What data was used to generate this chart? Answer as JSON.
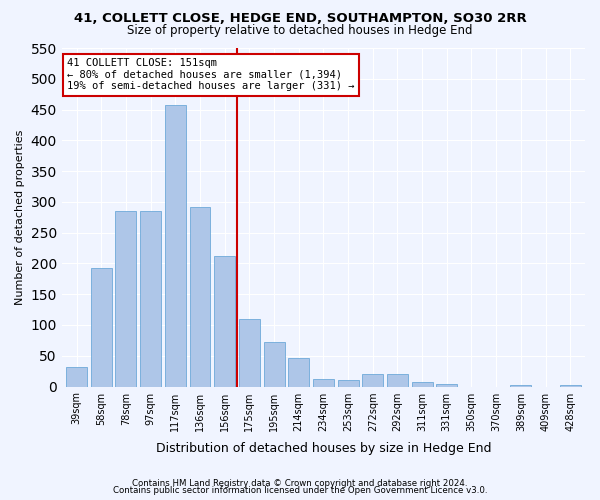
{
  "title1": "41, COLLETT CLOSE, HEDGE END, SOUTHAMPTON, SO30 2RR",
  "title2": "Size of property relative to detached houses in Hedge End",
  "xlabel": "Distribution of detached houses by size in Hedge End",
  "ylabel": "Number of detached properties",
  "categories": [
    "39sqm",
    "58sqm",
    "78sqm",
    "97sqm",
    "117sqm",
    "136sqm",
    "156sqm",
    "175sqm",
    "195sqm",
    "214sqm",
    "234sqm",
    "253sqm",
    "272sqm",
    "292sqm",
    "311sqm",
    "331sqm",
    "350sqm",
    "370sqm",
    "389sqm",
    "409sqm",
    "428sqm"
  ],
  "values": [
    32,
    192,
    285,
    285,
    458,
    291,
    212,
    110,
    73,
    47,
    12,
    11,
    20,
    20,
    7,
    4,
    0,
    0,
    3,
    0,
    2
  ],
  "bar_color": "#aec6e8",
  "bar_edge_color": "#5a9fd4",
  "vline_x": 6,
  "vline_color": "#cc0000",
  "annotation_line1": "41 COLLETT CLOSE: 151sqm",
  "annotation_line2": "← 80% of detached houses are smaller (1,394)",
  "annotation_line3": "19% of semi-detached houses are larger (331) →",
  "annotation_box_color": "#cc0000",
  "footnote1": "Contains HM Land Registry data © Crown copyright and database right 2024.",
  "footnote2": "Contains public sector information licensed under the Open Government Licence v3.0.",
  "ylim": [
    0,
    550
  ],
  "bg_color": "#f0f4ff",
  "grid_color": "#ffffff"
}
